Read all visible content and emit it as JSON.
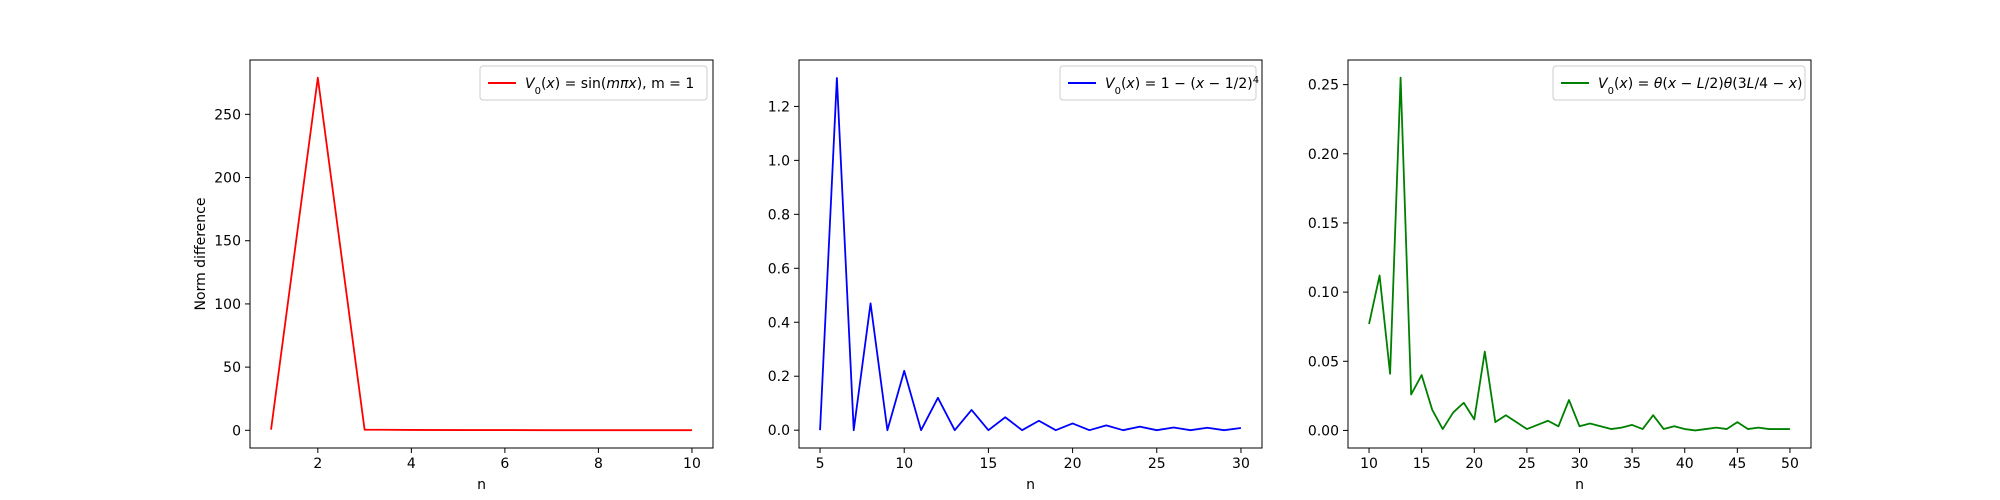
{
  "chart_data": [
    {
      "type": "line",
      "xlabel": "n",
      "ylabel": "Norm difference",
      "xlim": [
        0.55,
        10.45
      ],
      "ylim": [
        -14,
        293
      ],
      "xticks": [
        2,
        4,
        6,
        8,
        10
      ],
      "yticks": [
        0,
        50,
        100,
        150,
        200,
        250
      ],
      "xtick_labels": [
        "2",
        "4",
        "6",
        "8",
        "10"
      ],
      "ytick_labels": [
        "0",
        "50",
        "100",
        "150",
        "200",
        "250"
      ],
      "legend_position": "top-right",
      "color": "#ff0000",
      "series": [
        {
          "name": "V0(x) = sin(mπx), m = 1",
          "x": [
            1,
            2,
            3,
            4,
            5,
            6,
            7,
            8,
            9,
            10
          ],
          "y": [
            0.5,
            279,
            0.5,
            0.3,
            0.2,
            0.2,
            0.1,
            0.1,
            0.1,
            0.1
          ]
        }
      ]
    },
    {
      "type": "line",
      "xlabel": "n",
      "ylabel": "",
      "xlim": [
        3.75,
        31.25
      ],
      "ylim": [
        -0.066,
        1.372
      ],
      "xticks": [
        5,
        10,
        15,
        20,
        25,
        30
      ],
      "yticks": [
        0.0,
        0.2,
        0.4,
        0.6,
        0.8,
        1.0,
        1.2
      ],
      "xtick_labels": [
        "5",
        "10",
        "15",
        "20",
        "25",
        "30"
      ],
      "ytick_labels": [
        "0.0",
        "0.2",
        "0.4",
        "0.6",
        "0.8",
        "1.0",
        "1.2"
      ],
      "legend_position": "top-right",
      "color": "#0000ff",
      "series": [
        {
          "name": "V0(x) = 1 − (x − 1/2)^4",
          "x": [
            5,
            6,
            7,
            8,
            9,
            10,
            11,
            12,
            13,
            14,
            15,
            16,
            17,
            18,
            19,
            20,
            21,
            22,
            23,
            24,
            25,
            26,
            27,
            28,
            29,
            30
          ],
          "y": [
            0.0,
            1.305,
            0.0,
            0.47,
            0.0,
            0.22,
            0.0,
            0.12,
            0.0,
            0.075,
            0.0,
            0.048,
            0.0,
            0.035,
            0.0,
            0.025,
            0.0,
            0.018,
            0.0,
            0.013,
            0.0,
            0.01,
            0.0,
            0.009,
            0.0,
            0.008
          ]
        }
      ]
    },
    {
      "type": "line",
      "xlabel": "n",
      "ylabel": "",
      "xlim": [
        8.0,
        52.0
      ],
      "ylim": [
        -0.0127,
        0.2678
      ],
      "xticks": [
        10,
        15,
        20,
        25,
        30,
        35,
        40,
        45,
        50
      ],
      "yticks": [
        0.0,
        0.05,
        0.1,
        0.15,
        0.2,
        0.25
      ],
      "xtick_labels": [
        "10",
        "15",
        "20",
        "25",
        "30",
        "35",
        "40",
        "45",
        "50"
      ],
      "ytick_labels": [
        "0.00",
        "0.05",
        "0.10",
        "0.15",
        "0.20",
        "0.25"
      ],
      "legend_position": "top-right",
      "color": "#008000",
      "series": [
        {
          "name": "V0(x) = θ(x − L/2)θ(3L/4 − x)",
          "x": [
            10,
            11,
            12,
            13,
            14,
            15,
            16,
            17,
            18,
            19,
            20,
            21,
            22,
            23,
            24,
            25,
            26,
            27,
            28,
            29,
            30,
            31,
            32,
            33,
            34,
            35,
            36,
            37,
            38,
            39,
            40,
            41,
            42,
            43,
            44,
            45,
            46,
            47,
            48,
            49,
            50
          ],
          "y": [
            0.077,
            0.112,
            0.041,
            0.255,
            0.026,
            0.04,
            0.015,
            0.001,
            0.013,
            0.02,
            0.008,
            0.057,
            0.006,
            0.011,
            0.006,
            0.001,
            0.004,
            0.007,
            0.003,
            0.022,
            0.003,
            0.005,
            0.003,
            0.001,
            0.002,
            0.004,
            0.001,
            0.011,
            0.001,
            0.003,
            0.001,
            0.0,
            0.001,
            0.002,
            0.001,
            0.006,
            0.001,
            0.002,
            0.001,
            0.001,
            0.001
          ]
        }
      ]
    }
  ]
}
